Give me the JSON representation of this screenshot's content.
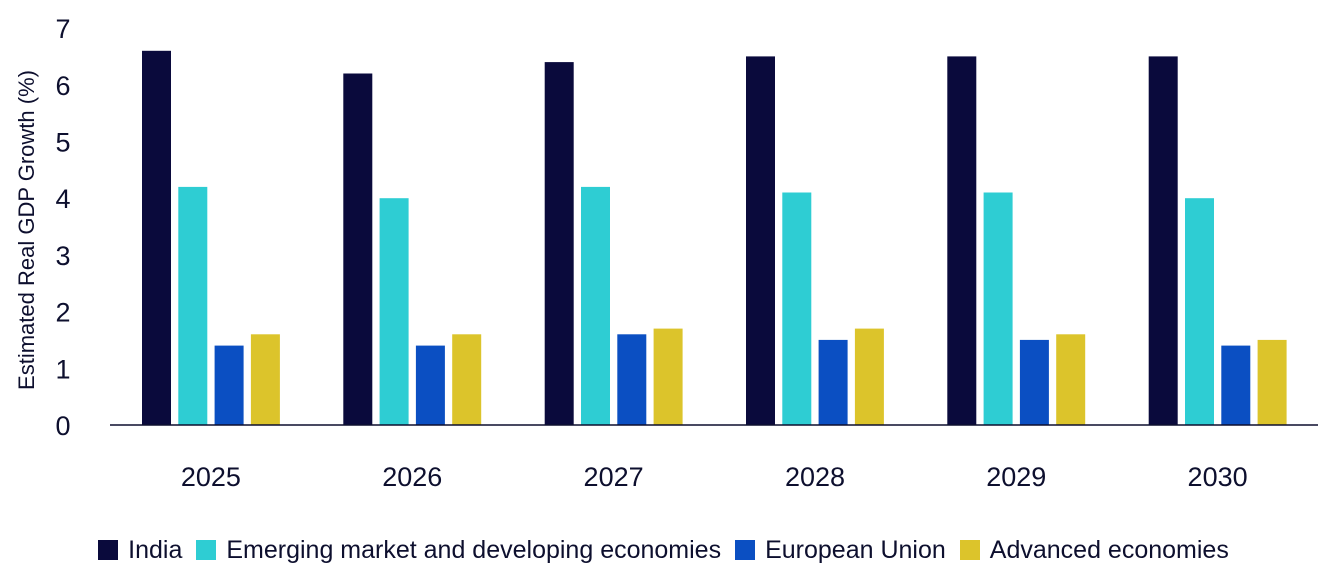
{
  "chart_data": {
    "type": "bar",
    "title": "",
    "xlabel": "",
    "ylabel": "Estimated Real GDP Growth (%)",
    "ylim": [
      0,
      7
    ],
    "yticks": [
      "0",
      "1",
      "2",
      "3",
      "4",
      "5",
      "6",
      "7"
    ],
    "categories": [
      "2025",
      "2026",
      "2027",
      "2028",
      "2029",
      "2030"
    ],
    "series": [
      {
        "name": "India",
        "color": "#0a0a3c",
        "values": [
          6.6,
          6.2,
          6.4,
          6.5,
          6.5,
          6.5
        ]
      },
      {
        "name": "Emerging market and developing economies",
        "color": "#2ecdd3",
        "values": [
          4.2,
          4.0,
          4.2,
          4.1,
          4.1,
          4.0
        ]
      },
      {
        "name": "European Union",
        "color": "#0b4fc2",
        "values": [
          1.4,
          1.4,
          1.6,
          1.5,
          1.5,
          1.4
        ]
      },
      {
        "name": "Advanced economies",
        "color": "#dcc42b",
        "values": [
          1.6,
          1.6,
          1.7,
          1.7,
          1.6,
          1.5
        ]
      }
    ],
    "grid": false,
    "legend_position": "bottom"
  }
}
